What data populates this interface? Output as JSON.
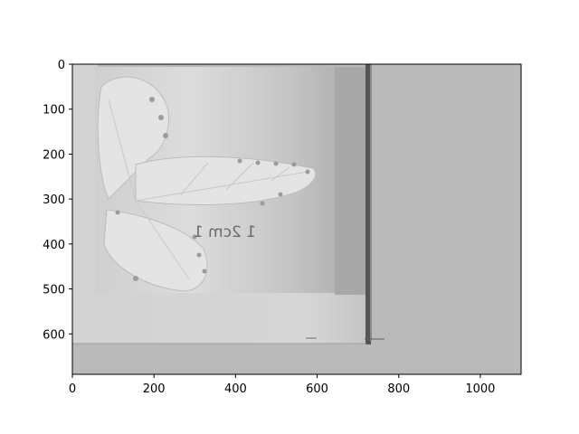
{
  "chart_data": {
    "type": "heatmap",
    "title": "",
    "xlabel": "",
    "ylabel": "",
    "xlim": [
      0,
      1100
    ],
    "ylim": [
      690,
      0
    ],
    "x_ticks": [
      0,
      200,
      400,
      600,
      800,
      1000
    ],
    "y_ticks": [
      0,
      100,
      200,
      300,
      400,
      500,
      600
    ],
    "x_tick_labels": [
      "0",
      "200",
      "400",
      "600",
      "800",
      "1000"
    ],
    "y_tick_labels": [
      "0",
      "100",
      "200",
      "300",
      "400",
      "500",
      "600"
    ],
    "grid": false,
    "colormap": "grayscale",
    "image": {
      "description_free": true,
      "embedded_text": "1 2cm 1",
      "background_gray": "#bababa"
    }
  }
}
